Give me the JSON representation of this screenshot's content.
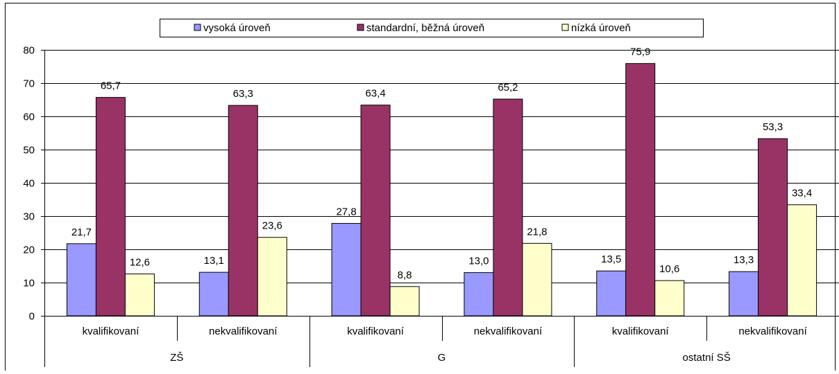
{
  "chart_data": {
    "type": "bar",
    "legend_position": "top",
    "grid": true,
    "ylim": [
      0,
      80
    ],
    "yticks": [
      0,
      10,
      20,
      30,
      40,
      50,
      60,
      70,
      80
    ],
    "groups": [
      {
        "label": "ZŠ",
        "categories": [
          "kvalifikovaní",
          "nekvalifikovaní"
        ]
      },
      {
        "label": "G",
        "categories": [
          "kvalifikovaní",
          "nekvalifikovaní"
        ]
      },
      {
        "label": "ostatní SŠ",
        "categories": [
          "kvalifikovaní",
          "nekvalifikovaní"
        ]
      }
    ],
    "categories": [
      "kvalifikovaní",
      "nekvalifikovaní",
      "kvalifikovaní",
      "nekvalifikovaní",
      "kvalifikovaní",
      "nekvalifikovaní"
    ],
    "series": [
      {
        "name": "vysoká úroveň",
        "color": "#9999ff",
        "values": [
          21.7,
          13.1,
          27.8,
          13.0,
          13.5,
          13.3
        ],
        "labels": [
          "21,7",
          "13,1",
          "27,8",
          "13,0",
          "13,5",
          "13,3"
        ]
      },
      {
        "name": "standardní, běžná úroveň",
        "color": "#993366",
        "values": [
          65.7,
          63.3,
          63.4,
          65.2,
          75.9,
          53.3
        ],
        "labels": [
          "65,7",
          "63,3",
          "63,4",
          "65,2",
          "75,9",
          "53,3"
        ]
      },
      {
        "name": "nízká úroveň",
        "color": "#ffffcc",
        "values": [
          12.6,
          23.6,
          8.8,
          21.8,
          10.6,
          33.4
        ],
        "labels": [
          "12,6",
          "23,6",
          "8,8",
          "21,8",
          "10,6",
          "33,4"
        ]
      }
    ]
  }
}
